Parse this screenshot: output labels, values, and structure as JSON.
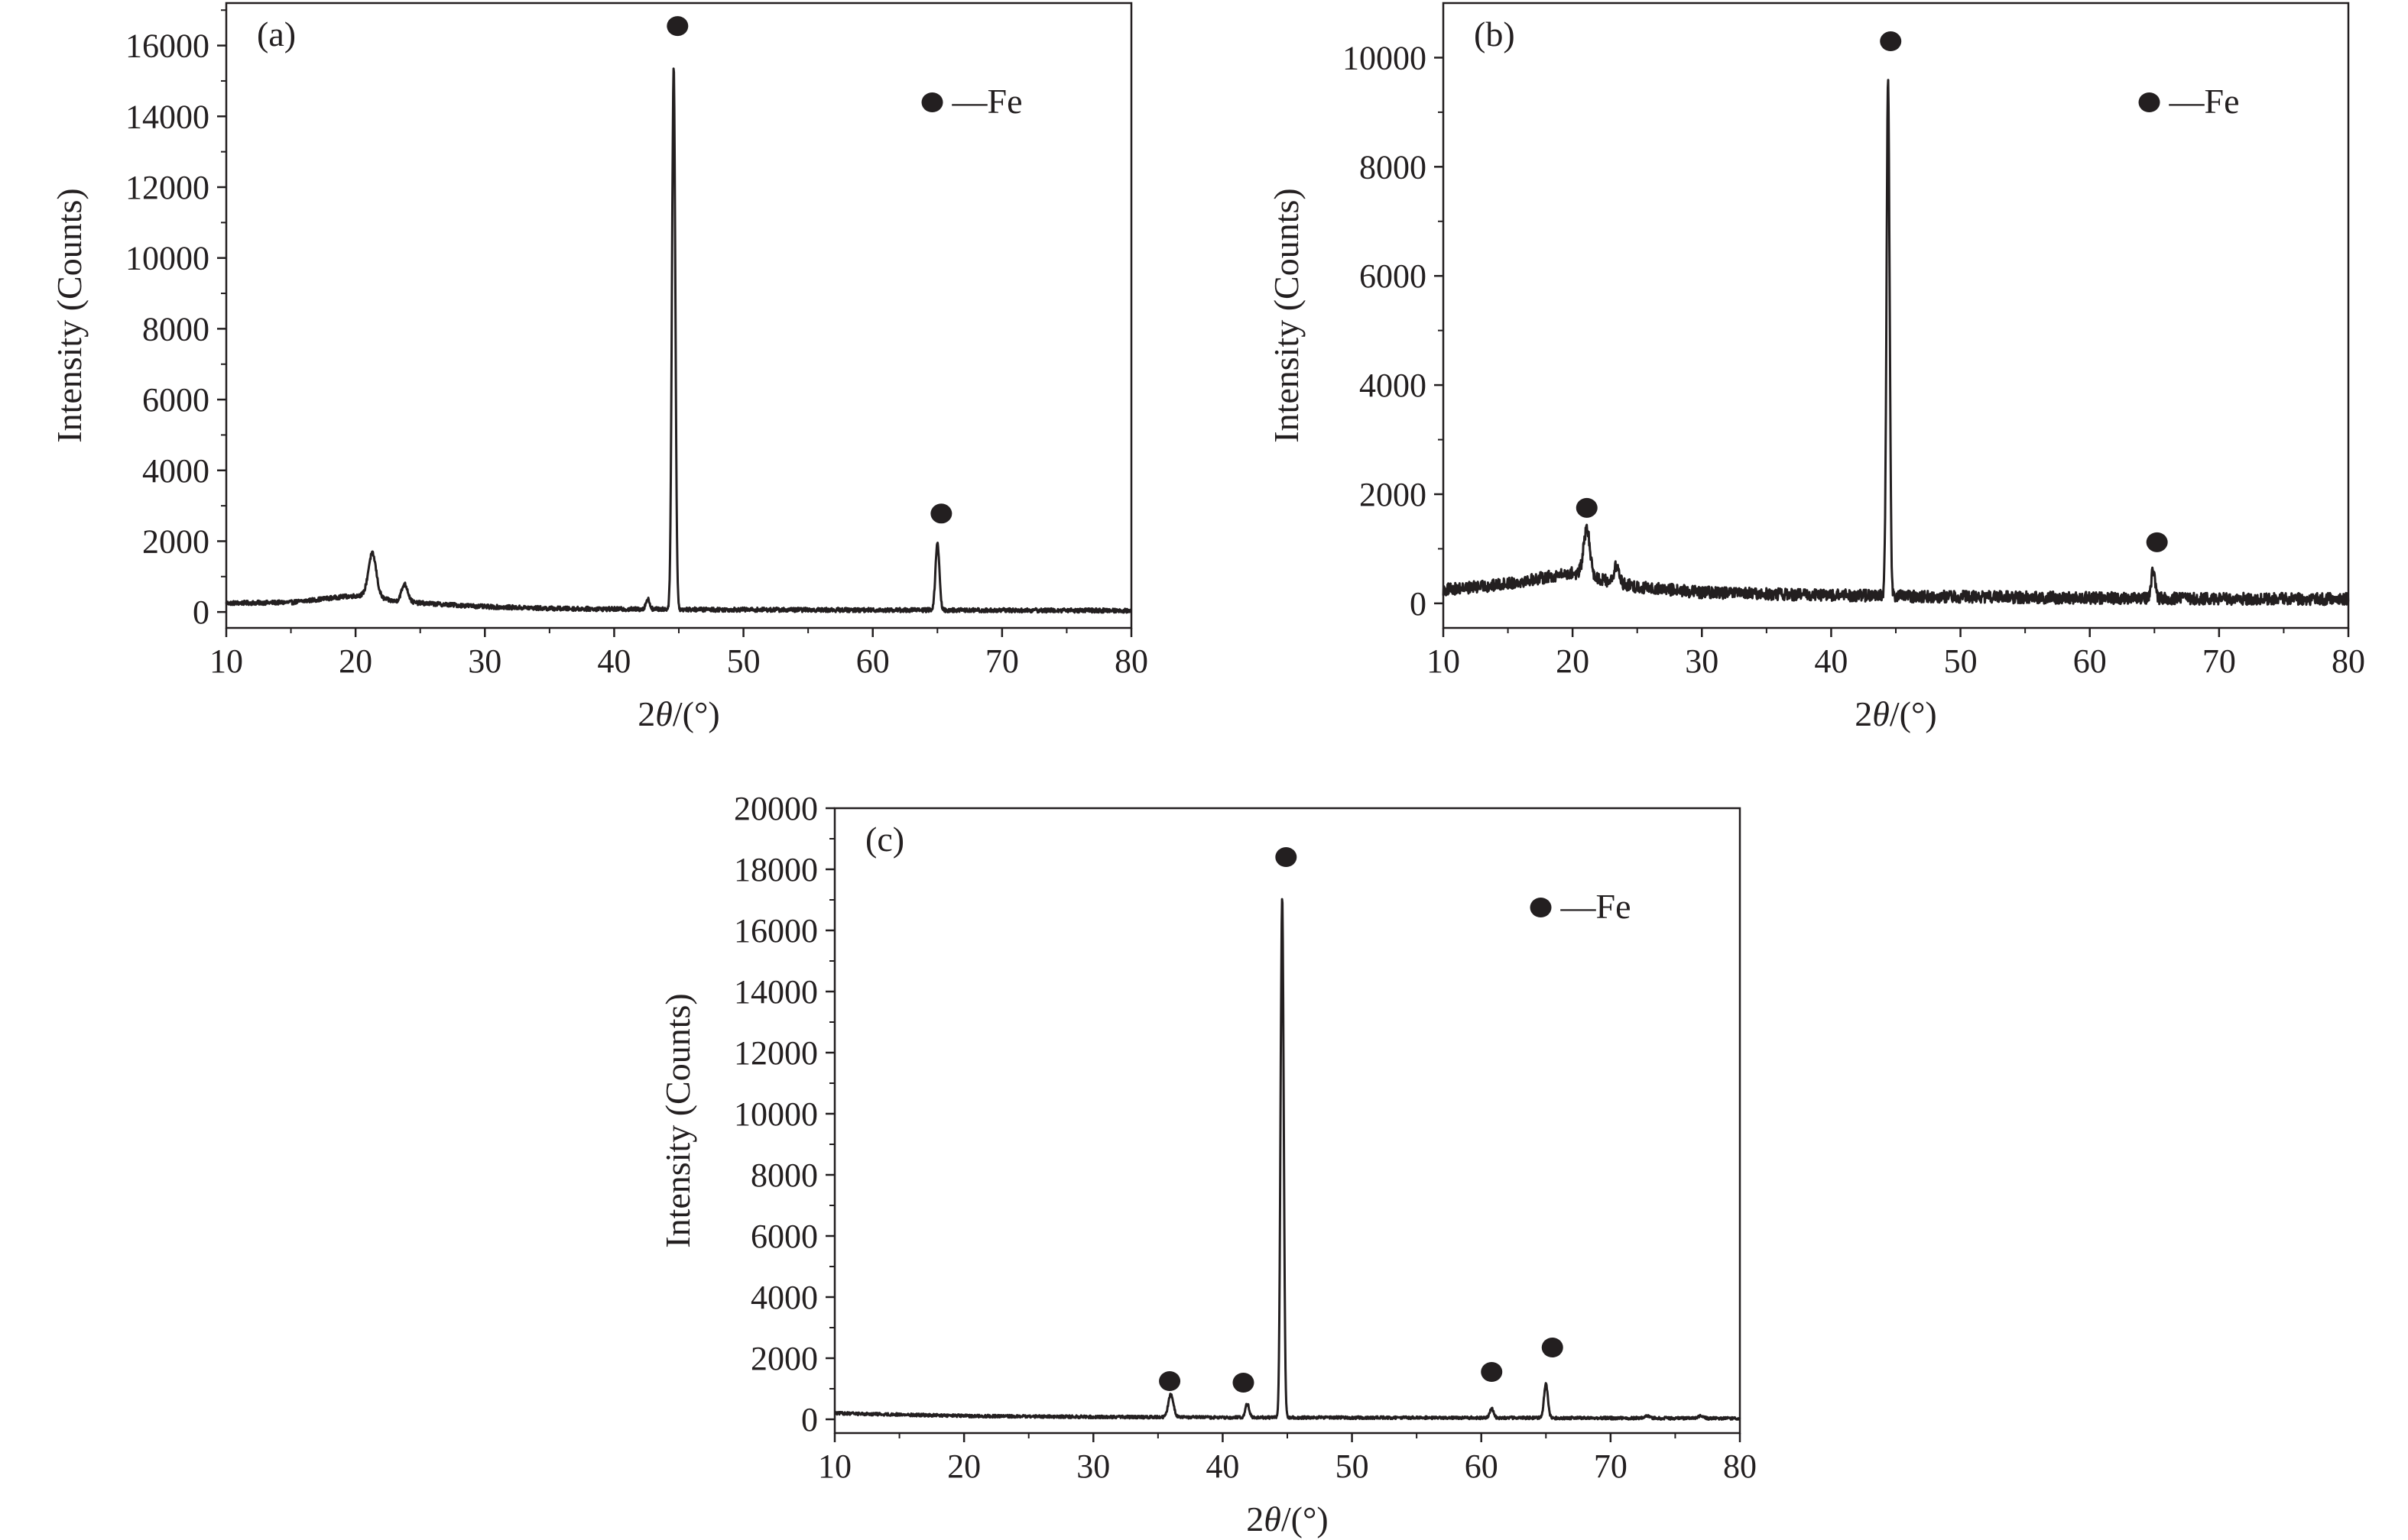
{
  "figure": {
    "colors": {
      "ink": "#231f20",
      "background": "#ffffff"
    },
    "marker_icon": "filled-circle"
  },
  "chart_data": [
    {
      "id": "a",
      "type": "line",
      "panel_label": "(a)",
      "xlabel_prefix": "2",
      "xlabel_symbol": "θ",
      "xlabel_suffix": "/(°)",
      "ylabel": "Intensity (Counts)",
      "xlim": [
        10,
        80
      ],
      "ylim": [
        -450,
        17200
      ],
      "xticks": [
        10,
        20,
        30,
        40,
        50,
        60,
        70,
        80
      ],
      "yticks": [
        0,
        2000,
        4000,
        6000,
        8000,
        10000,
        12000,
        14000,
        16000
      ],
      "legend": {
        "marker": "filled-circle",
        "label": "—Fe",
        "position": "top-right"
      },
      "baseline": [
        [
          10,
          250
        ],
        [
          15,
          270
        ],
        [
          19,
          430
        ],
        [
          21,
          480
        ],
        [
          23,
          300
        ],
        [
          26,
          230
        ],
        [
          30,
          150
        ],
        [
          35,
          100
        ],
        [
          40,
          80
        ],
        [
          44,
          80
        ],
        [
          46,
          70
        ],
        [
          55,
          60
        ],
        [
          60,
          55
        ],
        [
          64,
          55
        ],
        [
          66,
          50
        ],
        [
          75,
          45
        ],
        [
          80,
          40
        ]
      ],
      "peaks": [
        {
          "x": 21.3,
          "y": 1200,
          "w": 0.3
        },
        {
          "x": 23.8,
          "y": 500,
          "w": 0.25
        },
        {
          "x": 42.6,
          "y": 280,
          "w": 0.15
        },
        {
          "x": 44.6,
          "y": 15300,
          "w": 0.13
        },
        {
          "x": 65.0,
          "y": 1900,
          "w": 0.15
        }
      ],
      "noise": 60,
      "markers": [
        {
          "x": 44.9,
          "y": 16550,
          "phase": "Fe"
        },
        {
          "x": 65.3,
          "y": 2780,
          "phase": "Fe"
        }
      ]
    },
    {
      "id": "b",
      "type": "line",
      "panel_label": "(b)",
      "xlabel_prefix": "2",
      "xlabel_symbol": "θ",
      "xlabel_suffix": "/(°)",
      "ylabel": "Intensity (Counts)",
      "xlim": [
        10,
        80
      ],
      "ylim": [
        -450,
        11000
      ],
      "xticks": [
        10,
        20,
        30,
        40,
        50,
        60,
        70,
        80
      ],
      "yticks": [
        0,
        2000,
        4000,
        6000,
        8000,
        10000
      ],
      "legend": {
        "marker": "filled-circle",
        "label": "—Fe",
        "position": "top-right"
      },
      "baseline": [
        [
          10,
          250
        ],
        [
          14,
          330
        ],
        [
          18,
          480
        ],
        [
          20,
          560
        ],
        [
          22,
          450
        ],
        [
          25,
          300
        ],
        [
          30,
          200
        ],
        [
          35,
          170
        ],
        [
          40,
          150
        ],
        [
          44,
          140
        ],
        [
          46,
          130
        ],
        [
          55,
          110
        ],
        [
          60,
          100
        ],
        [
          66,
          90
        ],
        [
          75,
          80
        ],
        [
          80,
          80
        ]
      ],
      "peaks": [
        {
          "x": 21.1,
          "y": 850,
          "w": 0.25
        },
        {
          "x": 23.4,
          "y": 300,
          "w": 0.2
        },
        {
          "x": 44.4,
          "y": 9450,
          "w": 0.12
        },
        {
          "x": 64.9,
          "y": 520,
          "w": 0.15
        }
      ],
      "noise": 110,
      "markers": [
        {
          "x": 44.6,
          "y": 10300,
          "phase": "Fe"
        },
        {
          "x": 21.1,
          "y": 1750,
          "phase": "Fe"
        },
        {
          "x": 65.2,
          "y": 1120,
          "phase": "Fe"
        }
      ]
    },
    {
      "id": "c",
      "type": "line",
      "panel_label": "(c)",
      "xlabel_prefix": "2",
      "xlabel_symbol": "θ",
      "xlabel_suffix": "/(°)",
      "ylabel": "Intensity (Counts)",
      "xlim": [
        10,
        80
      ],
      "ylim": [
        -450,
        20000
      ],
      "xticks": [
        10,
        20,
        30,
        40,
        50,
        60,
        70,
        80
      ],
      "yticks": [
        0,
        2000,
        4000,
        6000,
        8000,
        10000,
        12000,
        14000,
        16000,
        18000,
        20000
      ],
      "legend": {
        "marker": "filled-circle",
        "label": "—Fe",
        "position": "top-right"
      },
      "baseline": [
        [
          10,
          200
        ],
        [
          12,
          180
        ],
        [
          20,
          110
        ],
        [
          30,
          80
        ],
        [
          40,
          60
        ],
        [
          50,
          55
        ],
        [
          60,
          50
        ],
        [
          70,
          40
        ],
        [
          80,
          30
        ]
      ],
      "peaks": [
        {
          "x": 36.0,
          "y": 750,
          "w": 0.2
        },
        {
          "x": 41.9,
          "y": 450,
          "w": 0.15
        },
        {
          "x": 44.6,
          "y": 17050,
          "w": 0.12
        },
        {
          "x": 60.8,
          "y": 300,
          "w": 0.15
        },
        {
          "x": 65.0,
          "y": 1100,
          "w": 0.15
        },
        {
          "x": 72.8,
          "y": 80,
          "w": 0.2
        },
        {
          "x": 77.0,
          "y": 70,
          "w": 0.2
        }
      ],
      "noise": 45,
      "markers": [
        {
          "x": 44.9,
          "y": 18400,
          "phase": "Fe"
        },
        {
          "x": 35.9,
          "y": 1250,
          "phase": "Fe"
        },
        {
          "x": 41.6,
          "y": 1200,
          "phase": "Fe"
        },
        {
          "x": 60.8,
          "y": 1550,
          "phase": "Fe"
        },
        {
          "x": 65.5,
          "y": 2350,
          "phase": "Fe"
        }
      ]
    }
  ]
}
